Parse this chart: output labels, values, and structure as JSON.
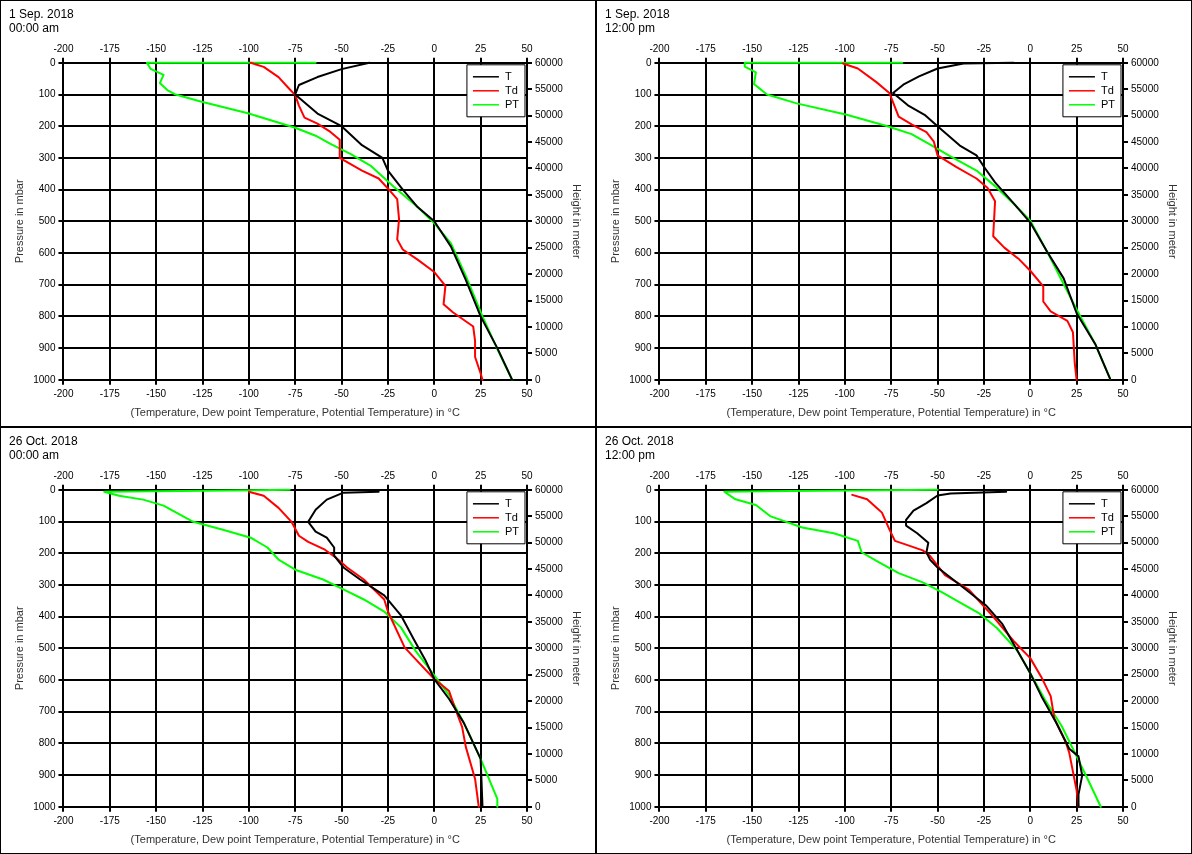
{
  "chart_data": [
    {
      "type": "line",
      "title": "1 Sep. 2018",
      "subtitle": "00:00 am",
      "xlabel": "(Temperature, Dew point Temperature, Potential Temperature) in °C",
      "ylabel": "Pressure in mbar",
      "y2label": "Height in meter",
      "xlim": [
        -200,
        50
      ],
      "xticks": [
        -200,
        -175,
        -150,
        -125,
        -100,
        -75,
        -50,
        -25,
        0,
        25,
        50
      ],
      "x2lim": [
        -200,
        50
      ],
      "x2ticks": [
        -200,
        -175,
        -150,
        -125,
        -100,
        -75,
        -50,
        -25,
        0,
        25,
        50
      ],
      "ylim": [
        1000,
        0
      ],
      "yticks": [
        0,
        100,
        200,
        300,
        400,
        500,
        600,
        700,
        800,
        900,
        1000
      ],
      "y2lim": [
        0,
        60000
      ],
      "y2ticks": [
        0,
        5000,
        10000,
        15000,
        20000,
        25000,
        30000,
        35000,
        40000,
        45000,
        50000,
        55000,
        60000
      ],
      "grid": true,
      "legend": "top right",
      "marker": "none",
      "line_style": "solid",
      "series": [
        {
          "name": "T",
          "color": "#000000",
          "x": [
            -35,
            -50,
            -63,
            -73,
            -75,
            -63,
            -50,
            -39,
            -28,
            -25,
            -17,
            -9,
            0,
            9,
            17,
            25,
            34,
            42
          ],
          "values": [
            0,
            20,
            45,
            70,
            100,
            160,
            200,
            260,
            300,
            340,
            400,
            455,
            500,
            580,
            685,
            800,
            900,
            1000
          ]
        },
        {
          "name": "Td",
          "color": "#ff0000",
          "x": [
            -99,
            -92,
            -84,
            -79,
            -75,
            -73,
            -70,
            -63,
            -56,
            -51,
            -51,
            -39,
            -30,
            -24,
            -20,
            -19,
            -20,
            -17,
            -9,
            0,
            6,
            5,
            10,
            21,
            22,
            22,
            25,
            26
          ],
          "values": [
            0,
            13,
            45,
            77,
            102,
            135,
            173,
            192,
            218,
            243,
            300,
            340,
            365,
            403,
            430,
            493,
            557,
            589,
            621,
            660,
            704,
            762,
            787,
            832,
            877,
            928,
            980,
            1000
          ]
        },
        {
          "name": "PT",
          "color": "#00ff00",
          "x": [
            -64,
            -155,
            -153,
            -146,
            -148,
            -144,
            -140,
            -126,
            -100,
            -75,
            -64,
            -56,
            -45,
            -34,
            -22,
            -9,
            0,
            9,
            17,
            26,
            34,
            42
          ],
          "values": [
            0,
            0,
            19,
            38,
            64,
            86,
            99,
            122,
            160,
            205,
            230,
            256,
            288,
            326,
            390,
            455,
            506,
            570,
            672,
            800,
            903,
            1000
          ]
        }
      ]
    },
    {
      "type": "line",
      "title": "1 Sep. 2018",
      "subtitle": "12:00 pm",
      "xlabel": "(Temperature, Dew point Temperature, Potential Temperature) in °C",
      "ylabel": "Pressure in mbar",
      "y2label": "Height in meter",
      "xlim": [
        -200,
        50
      ],
      "xticks": [
        -200,
        -175,
        -150,
        -125,
        -100,
        -75,
        -50,
        -25,
        0,
        25,
        50
      ],
      "x2lim": [
        -200,
        50
      ],
      "x2ticks": [
        -200,
        -175,
        -150,
        -125,
        -100,
        -75,
        -50,
        -25,
        0,
        25,
        50
      ],
      "ylim": [
        1000,
        0
      ],
      "yticks": [
        0,
        100,
        200,
        300,
        400,
        500,
        600,
        700,
        800,
        900,
        1000
      ],
      "y2lim": [
        0,
        60000
      ],
      "y2ticks": [
        0,
        5000,
        10000,
        15000,
        20000,
        25000,
        30000,
        35000,
        40000,
        45000,
        50000,
        55000,
        60000
      ],
      "grid": true,
      "legend": "top right",
      "marker": "none",
      "line_style": "solid",
      "series": [
        {
          "name": "T",
          "color": "#000000",
          "x": [
            -9,
            -36,
            -50,
            -60,
            -68,
            -74,
            -66,
            -57,
            -50,
            -38,
            -29,
            -25,
            -19,
            -8,
            0,
            9,
            18,
            25,
            35,
            43
          ],
          "values": [
            0,
            2,
            18,
            43,
            67,
            95,
            134,
            164,
            200,
            261,
            292,
            328,
            377,
            450,
            504,
            595,
            680,
            790,
            887,
            996
          ]
        },
        {
          "name": "Td",
          "color": "#ff0000",
          "x": [
            -101,
            -93,
            -83,
            -76,
            -73,
            -71,
            -64,
            -56,
            -52,
            -50,
            -40,
            -29,
            -23,
            -19,
            -20,
            -14,
            -6,
            0,
            7,
            7,
            11,
            20,
            23,
            24,
            25
          ],
          "values": [
            2,
            18,
            61,
            95,
            140,
            170,
            194,
            219,
            249,
            292,
            328,
            365,
            395,
            437,
            547,
            583,
            620,
            656,
            705,
            753,
            784,
            814,
            850,
            948,
            1000
          ]
        },
        {
          "name": "PT",
          "color": "#00ff00",
          "x": [
            -69,
            -154,
            -154,
            -148,
            -149,
            -142,
            -126,
            -99,
            -77,
            -64,
            -53,
            -44,
            -29,
            -19,
            -8,
            0,
            9,
            25,
            35,
            43
          ],
          "values": [
            0,
            0,
            12,
            30,
            67,
            100,
            128,
            164,
            200,
            225,
            261,
            292,
            340,
            389,
            450,
            498,
            595,
            778,
            887,
            996
          ]
        }
      ]
    },
    {
      "type": "line",
      "title": "26 Oct. 2018",
      "subtitle": "00:00 am",
      "xlabel": "(Temperature, Dew point Temperature, Potential Temperature) in °C",
      "ylabel": "Pressure in mbar",
      "y2label": "Height in meter",
      "xlim": [
        -200,
        50
      ],
      "xticks": [
        -200,
        -175,
        -150,
        -125,
        -100,
        -75,
        -50,
        -25,
        0,
        25,
        50
      ],
      "x2lim": [
        -200,
        50
      ],
      "x2ticks": [
        -200,
        -175,
        -150,
        -125,
        -100,
        -75,
        -50,
        -25,
        0,
        25,
        50
      ],
      "ylim": [
        1000,
        0
      ],
      "yticks": [
        0,
        100,
        200,
        300,
        400,
        500,
        600,
        700,
        800,
        900,
        1000
      ],
      "y2lim": [
        0,
        60000
      ],
      "y2ticks": [
        0,
        5000,
        10000,
        15000,
        20000,
        25000,
        30000,
        35000,
        40000,
        45000,
        50000,
        55000,
        60000
      ],
      "grid": true,
      "legend": "top right",
      "marker": "none",
      "line_style": "solid",
      "series": [
        {
          "name": "T",
          "color": "#000000",
          "x": [
            -30,
            -49,
            -58,
            -64,
            -68,
            -64,
            -58,
            -54,
            -54,
            -49,
            -40,
            -27,
            -18,
            -11,
            -5,
            0,
            8,
            16,
            25,
            26
          ],
          "values": [
            6,
            9,
            31,
            63,
            101,
            132,
            151,
            182,
            208,
            245,
            283,
            333,
            396,
            472,
            535,
            597,
            660,
            736,
            849,
            1000
          ]
        },
        {
          "name": "Td",
          "color": "#ff0000",
          "x": [
            -100,
            -92,
            -84,
            -77,
            -73,
            -68,
            -59,
            -53,
            -47,
            -38,
            -27,
            -25,
            -23,
            -16,
            -10,
            0,
            8,
            11,
            15,
            17,
            22,
            24
          ],
          "values": [
            6,
            19,
            57,
            101,
            145,
            164,
            189,
            214,
            245,
            283,
            346,
            384,
            409,
            497,
            535,
            597,
            635,
            686,
            748,
            811,
            912,
            1000
          ]
        },
        {
          "name": "PT",
          "color": "#00ff00",
          "x": [
            -78,
            -178,
            -170,
            -157,
            -146,
            -130,
            -114,
            -99,
            -90,
            -84,
            -75,
            -60,
            -49,
            -38,
            -27,
            -18,
            -10,
            0,
            8,
            16,
            25,
            34,
            34
          ],
          "values": [
            0,
            6,
            19,
            31,
            50,
            101,
            126,
            151,
            182,
            220,
            252,
            283,
            314,
            346,
            384,
            434,
            509,
            585,
            648,
            736,
            849,
            975,
            1000
          ]
        }
      ]
    },
    {
      "type": "line",
      "title": "26 Oct. 2018",
      "subtitle": "12:00 pm",
      "xlabel": "(Temperature, Dew point Temperature, Potential Temperature) in °C",
      "ylabel": "Pressure in mbar",
      "y2label": "Height in meter",
      "xlim": [
        -200,
        50
      ],
      "xticks": [
        -200,
        -175,
        -150,
        -125,
        -100,
        -75,
        -50,
        -25,
        0,
        25,
        50
      ],
      "x2lim": [
        -200,
        50
      ],
      "x2ticks": [
        -200,
        -175,
        -150,
        -125,
        -100,
        -75,
        -50,
        -25,
        0,
        25,
        50
      ],
      "ylim": [
        1000,
        0
      ],
      "yticks": [
        0,
        100,
        200,
        300,
        400,
        500,
        600,
        700,
        800,
        900,
        1000
      ],
      "y2lim": [
        0,
        60000
      ],
      "y2ticks": [
        0,
        5000,
        10000,
        15000,
        20000,
        25000,
        30000,
        35000,
        40000,
        45000,
        50000,
        55000,
        60000
      ],
      "grid": true,
      "legend": "top right",
      "marker": "none",
      "line_style": "solid",
      "series": [
        {
          "name": "T",
          "color": "#000000",
          "x": [
            -13,
            -43,
            -50,
            -56,
            -63,
            -67,
            -67,
            -61,
            -55,
            -56,
            -54,
            -50,
            -37,
            -24,
            -15,
            -7,
            0,
            6,
            14,
            21,
            26,
            28,
            26,
            26
          ],
          "values": [
            6,
            12,
            18,
            42,
            66,
            95,
            113,
            137,
            167,
            197,
            221,
            245,
            304,
            364,
            424,
            507,
            579,
            651,
            735,
            817,
            841,
            901,
            961,
            1000
          ]
        },
        {
          "name": "Td",
          "color": "#ff0000",
          "x": [
            -96,
            -88,
            -80,
            -76,
            -73,
            -67,
            -58,
            -54,
            -46,
            -33,
            -20,
            -9,
            0,
            6,
            11,
            13,
            19,
            21,
            23,
            25,
            26
          ],
          "values": [
            16,
            30,
            72,
            125,
            161,
            173,
            191,
            209,
            269,
            316,
            400,
            477,
            531,
            591,
            651,
            722,
            794,
            829,
            889,
            949,
            1000
          ]
        },
        {
          "name": "PT",
          "color": "#00ff00",
          "x": [
            -50,
            -165,
            -159,
            -148,
            -140,
            -123,
            -106,
            -93,
            -91,
            -82,
            -71,
            -58,
            -48,
            -39,
            -28,
            -18,
            -7,
            0,
            8,
            17,
            25,
            31,
            38
          ],
          "values": [
            0,
            6,
            30,
            48,
            84,
            119,
            137,
            161,
            197,
            227,
            263,
            292,
            322,
            352,
            388,
            436,
            507,
            579,
            663,
            746,
            841,
            913,
            1000
          ]
        }
      ]
    }
  ]
}
